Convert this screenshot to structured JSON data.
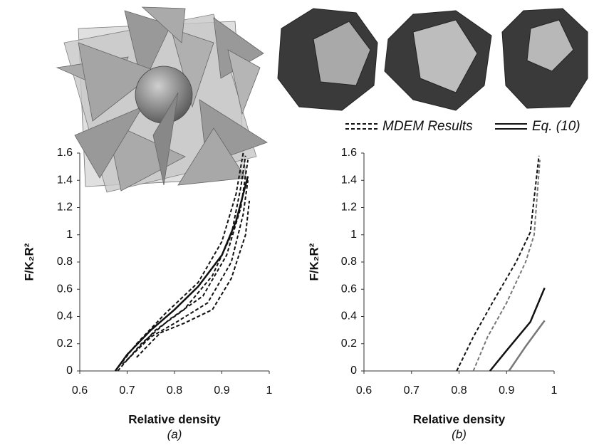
{
  "chart_data": [
    {
      "type": "line",
      "caption": "(a)",
      "xlabel": "Relative density",
      "ylabel": "F/K₂R²",
      "xlim": [
        0.6,
        1
      ],
      "xticks": [
        0.6,
        0.7,
        0.8,
        0.9,
        1
      ],
      "ylim": [
        0,
        1.6
      ],
      "yticks": [
        0,
        0.2,
        0.4,
        0.6,
        0.8,
        1,
        1.2,
        1.4,
        1.6
      ],
      "series": [
        {
          "name": "MDEM Results",
          "color": "#111111",
          "style": "dashed",
          "x": [
            0.675,
            0.72,
            0.78,
            0.85,
            0.9,
            0.93,
            0.945
          ],
          "values": [
            0,
            0.2,
            0.42,
            0.65,
            0.95,
            1.3,
            1.6
          ]
        },
        {
          "name": "MDEM Results",
          "color": "#111111",
          "style": "dashed",
          "x": [
            0.68,
            0.73,
            0.79,
            0.86,
            0.91,
            0.94,
            0.955
          ],
          "values": [
            0,
            0.2,
            0.38,
            0.55,
            0.85,
            1.2,
            1.55
          ]
        },
        {
          "name": "MDEM Results",
          "color": "#111111",
          "style": "dashed",
          "x": [
            0.69,
            0.75,
            0.8,
            0.87,
            0.92,
            0.945,
            0.955
          ],
          "values": [
            0.05,
            0.25,
            0.35,
            0.5,
            0.8,
            1.15,
            1.4
          ]
        },
        {
          "name": "MDEM Results",
          "color": "#111111",
          "style": "dashed",
          "x": [
            0.72,
            0.77,
            0.82,
            0.88,
            0.92,
            0.95,
            0.958
          ],
          "values": [
            0.1,
            0.28,
            0.35,
            0.45,
            0.68,
            1.0,
            1.25
          ]
        },
        {
          "name": "MDEM Results",
          "color": "#111111",
          "style": "dashed",
          "x": [
            0.7,
            0.76,
            0.82,
            0.88,
            0.92,
            0.94,
            0.95
          ],
          "values": [
            0.08,
            0.3,
            0.45,
            0.7,
            1.0,
            1.35,
            1.58
          ]
        },
        {
          "name": "Eq. (10)",
          "color": "#111111",
          "style": "solid",
          "x": [
            0.675,
            0.7,
            0.75,
            0.8,
            0.85,
            0.9,
            0.93,
            0.955
          ],
          "values": [
            0,
            0.12,
            0.3,
            0.45,
            0.62,
            0.85,
            1.1,
            1.43
          ]
        }
      ]
    },
    {
      "type": "line",
      "caption": "(b)",
      "xlabel": "Relative density",
      "ylabel": "F/K₂R²",
      "xlim": [
        0.6,
        1
      ],
      "xticks": [
        0.6,
        0.7,
        0.8,
        0.9,
        1
      ],
      "ylim": [
        0,
        1.6
      ],
      "yticks": [
        0,
        0.2,
        0.4,
        0.6,
        0.8,
        1,
        1.2,
        1.4,
        1.6
      ],
      "series": [
        {
          "name": "MDEM Results",
          "color": "#111111",
          "style": "dashed",
          "x": [
            0.795,
            0.83,
            0.87,
            0.92,
            0.95,
            0.968
          ],
          "values": [
            0,
            0.25,
            0.5,
            0.8,
            1.02,
            1.58
          ]
        },
        {
          "name": "MDEM Results",
          "color": "#777777",
          "style": "dashed",
          "x": [
            0.83,
            0.86,
            0.9,
            0.94,
            0.958,
            0.97
          ],
          "values": [
            0,
            0.25,
            0.5,
            0.8,
            1.0,
            1.55
          ]
        },
        {
          "name": "Eq. (10)",
          "color": "#111111",
          "style": "solid",
          "x": [
            0.865,
            0.9,
            0.95,
            0.98
          ],
          "values": [
            0,
            0.15,
            0.36,
            0.61
          ]
        },
        {
          "name": "Eq. (10)",
          "color": "#777777",
          "style": "solid",
          "x": [
            0.905,
            0.94,
            0.98
          ],
          "values": [
            0,
            0.18,
            0.37
          ]
        }
      ]
    }
  ]
}
